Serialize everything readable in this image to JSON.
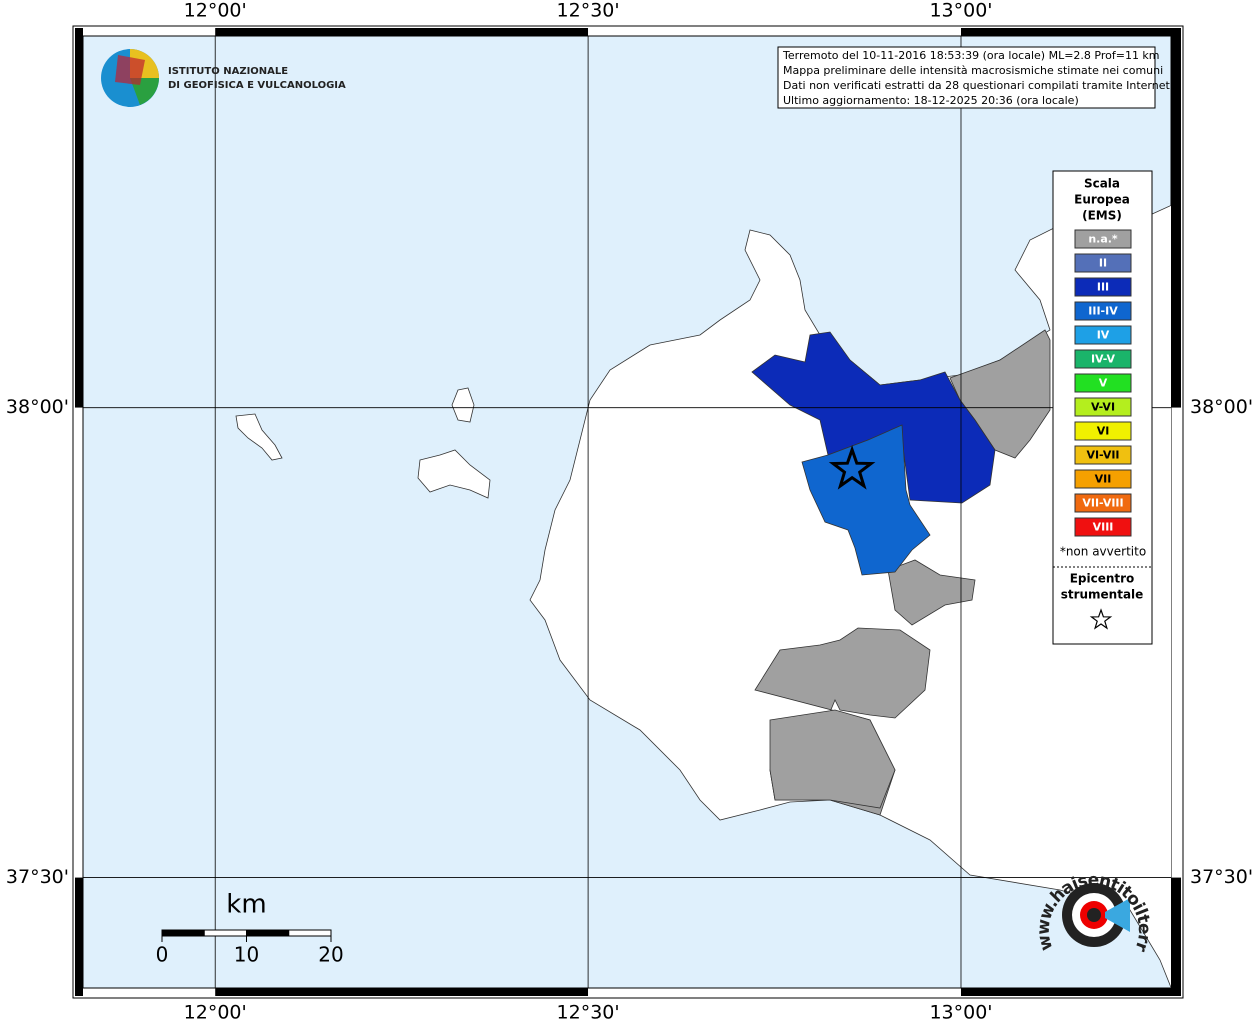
{
  "map": {
    "lon_range": [
      11.812,
      13.295
    ],
    "lat_range": [
      37.374,
      38.404
    ],
    "lon_ticks": [
      {
        "value": 12,
        "label": "12°00'"
      },
      {
        "value": 12.5,
        "label": "12°30'"
      },
      {
        "value": 13,
        "label": "13°00'"
      }
    ],
    "lat_ticks": [
      {
        "value": 38,
        "label": "38°00'"
      },
      {
        "value": 37.5,
        "label": "37°30'"
      }
    ],
    "epicenter": {
      "lon": 12.854,
      "lat": 37.934
    }
  },
  "logo": {
    "lines": [
      "ISTITUTO NAZIONALE",
      "DI GEOFISICA E VULCANOLOGIA"
    ]
  },
  "info": {
    "lines": [
      "Terremoto del 10-11-2016 18:53:39 (ora locale) ML=2.8 Prof=11 km",
      "Mappa preliminare delle intensità macrosismiche stimate nei comuni",
      "Dati non verificati estratti da 28 questionari compilati tramite Internet.",
      "Ultimo aggiornamento: 18-12-2025 20:36 (ora locale)"
    ]
  },
  "legend": {
    "title": [
      "Scala",
      "Europea",
      "(EMS)"
    ],
    "items": [
      {
        "label": "n.a.*",
        "color": "#a0a0a0"
      },
      {
        "label": "II",
        "color": "#5470b8"
      },
      {
        "label": "III",
        "color": "#0c2bb8"
      },
      {
        "label": "III-IV",
        "color": "#0f66cf"
      },
      {
        "label": "IV",
        "color": "#1ea0e6"
      },
      {
        "label": "IV-V",
        "color": "#1ab46a"
      },
      {
        "label": "V",
        "color": "#22e022"
      },
      {
        "label": "V-VI",
        "color": "#b4ee1e"
      },
      {
        "label": "VI",
        "color": "#f0f000"
      },
      {
        "label": "VI-VII",
        "color": "#f0c010"
      },
      {
        "label": "VII",
        "color": "#f5a000"
      },
      {
        "label": "VII-VIII",
        "color": "#f06a10"
      },
      {
        "label": "VIII",
        "color": "#f01010"
      }
    ],
    "note": "*non avvertito",
    "epicenter_title": [
      "Epicentro",
      "strumentale"
    ]
  },
  "scale_bar": {
    "unit": "km",
    "ticks": [
      0,
      10,
      20
    ]
  },
  "website": "www.haisentitoilterremoto.it"
}
